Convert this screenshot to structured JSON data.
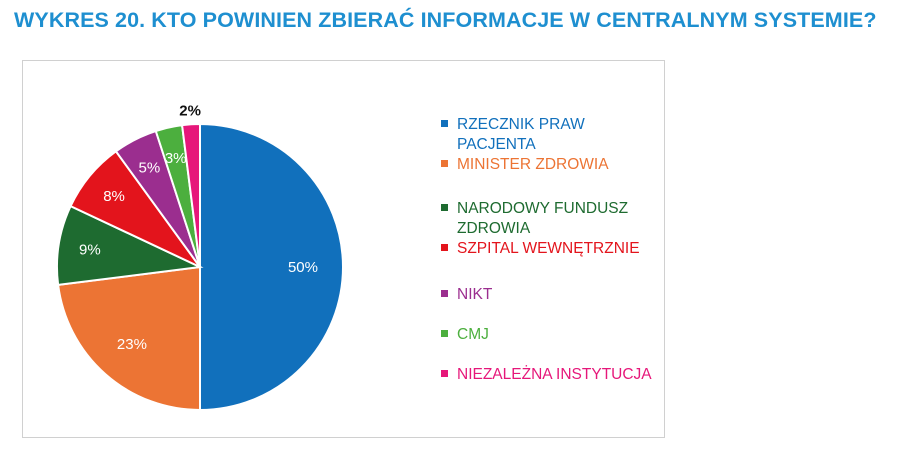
{
  "title": "WYKRES 20. KTO POWINIEN ZBIERAĆ INFORMACJE W CENTRALNYM SYSTEMIE?",
  "chart_data": {
    "type": "pie",
    "title": "",
    "slices": [
      {
        "label": "RZECZNIK PRAW PACJENTA",
        "value": 50,
        "color": "#1170bc",
        "value_label": "50%"
      },
      {
        "label": "MINISTER ZDROWIA",
        "value": 23,
        "color": "#ec7434",
        "value_label": "23%"
      },
      {
        "label": "NARODOWY FUNDUSZ ZDROWIA",
        "value": 9,
        "color": "#1e6b30",
        "value_label": "9%"
      },
      {
        "label": "SZPITAL WEWNĘTRZNIE",
        "value": 8,
        "color": "#e3141c",
        "value_label": "8%"
      },
      {
        "label": "NIKT",
        "value": 5,
        "color": "#9b2e8f",
        "value_label": "5%"
      },
      {
        "label": "CMJ",
        "value": 3,
        "color": "#4caf3e",
        "value_label": "3%"
      },
      {
        "label": "NIEZALEŻNA INSTYTUCJA",
        "value": 2,
        "color": "#e6177a",
        "value_label": "2%"
      }
    ],
    "legend_position": "right"
  }
}
